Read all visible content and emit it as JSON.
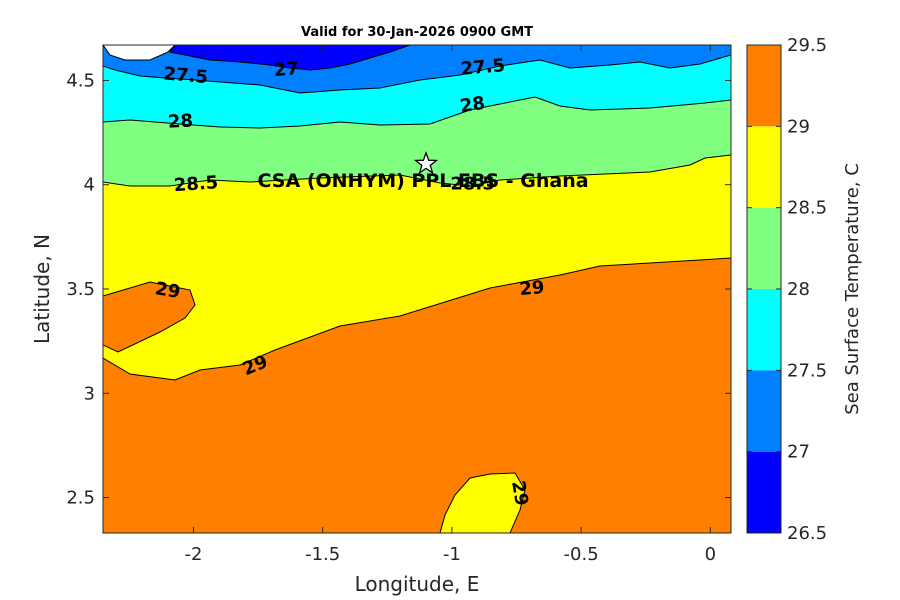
{
  "chart_data": {
    "type": "filled-contour",
    "title": "Valid for 30-Jan-2026 0900 GMT",
    "xlabel": "Longitude, E",
    "ylabel": "Latitude, N",
    "xlim": [
      -2.35,
      0.08
    ],
    "ylim": [
      2.33,
      4.67
    ],
    "x_ticks": [
      -2,
      -1.5,
      -1,
      -0.5,
      0
    ],
    "x_tick_labels": [
      "-2",
      "-1.5",
      "-1",
      "-0.5",
      "0"
    ],
    "y_ticks": [
      2.5,
      3,
      3.5,
      4,
      4.5
    ],
    "y_tick_labels": [
      "2.5",
      "3",
      "3.5",
      "4",
      "4.5"
    ],
    "colorbar": {
      "label": "Sea Surface Temperature, C",
      "levels": [
        26.5,
        27,
        27.5,
        28,
        28.5,
        29,
        29.5
      ],
      "tick_labels": [
        "26.5",
        "27",
        "27.5",
        "28",
        "28.5",
        "29",
        "29.5"
      ],
      "colors": [
        "#0000ff",
        "#0080ff",
        "#00ffff",
        "#80ff80",
        "#ffff00",
        "#ff8000"
      ]
    },
    "contour_labels": [
      {
        "text": "27.5",
        "lon": -2.03,
        "lat": 4.52,
        "angle": 5
      },
      {
        "text": "27",
        "lon": -1.64,
        "lat": 4.55,
        "angle": -5
      },
      {
        "text": "27.5",
        "lon": -0.88,
        "lat": 4.56,
        "angle": -5
      },
      {
        "text": "28",
        "lon": -2.05,
        "lat": 4.3,
        "angle": -3
      },
      {
        "text": "28",
        "lon": -0.92,
        "lat": 4.38,
        "angle": -8
      },
      {
        "text": "28.5",
        "lon": -1.99,
        "lat": 4.0,
        "angle": -4
      },
      {
        "text": "28.5",
        "lon": -0.92,
        "lat": 4.0,
        "angle": 0
      },
      {
        "text": "29",
        "lon": -2.1,
        "lat": 3.49,
        "angle": 10
      },
      {
        "text": "29",
        "lon": -1.76,
        "lat": 3.13,
        "angle": -22
      },
      {
        "text": "29",
        "lon": -0.69,
        "lat": 3.5,
        "angle": -5
      },
      {
        "text": "29",
        "lon": -0.74,
        "lat": 2.52,
        "angle": 80
      }
    ],
    "site": {
      "name": "CSA (ONHYM) PPL EBS  - Ghana",
      "lon": -1.1,
      "lat": 4.1
    }
  }
}
